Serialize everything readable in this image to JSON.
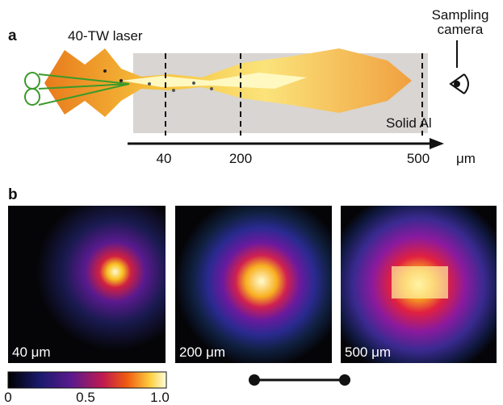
{
  "panel_a": {
    "label": "a",
    "laser_label": "40-TW laser",
    "camera_label": [
      "Sampling",
      "camera"
    ],
    "target_label": "Solid Al",
    "axis": {
      "ticks": [
        "40",
        "200",
        "500"
      ],
      "unit": "μm"
    }
  },
  "panel_b": {
    "label": "b",
    "images": [
      {
        "label": "40 μm"
      },
      {
        "label": "200 μm"
      },
      {
        "label": "500 μm"
      }
    ],
    "colorbar": {
      "ticks": [
        "0",
        "0.5",
        "1.0"
      ]
    }
  }
}
